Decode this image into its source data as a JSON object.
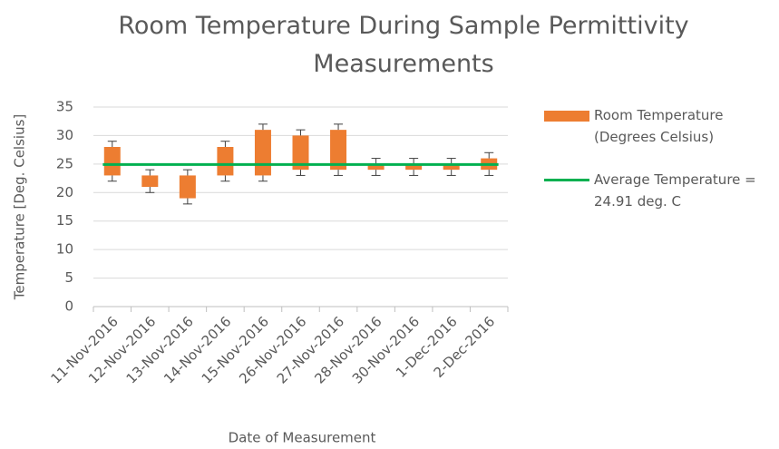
{
  "chart_data": {
    "type": "floating_bar",
    "title": "Room Temperature During Sample Permittivity Measurements",
    "x_label": "Date of Measurement",
    "y_label": "Temperature  [Deg. Celsius]",
    "categories": [
      "11-Nov-2016",
      "12-Nov-2016",
      "13-Nov-2016",
      "14-Nov-2016",
      "15-Nov-2016",
      "26-Nov-2016",
      "27-Nov-2016",
      "28-Nov-2016",
      "30-Nov-2016",
      "1-Dec-2016",
      "2-Dec-2016"
    ],
    "series": [
      {
        "name": "Room Temperature (Degrees Celsius)",
        "color": "#ed7d31",
        "low": [
          23,
          21,
          19,
          23,
          23,
          24,
          24,
          24,
          24,
          24,
          24
        ],
        "high": [
          28,
          23,
          23,
          28,
          31,
          30,
          31,
          25,
          25,
          25,
          26
        ],
        "error": 1
      }
    ],
    "average": {
      "name": "Average Temperature = 24.91 deg. C",
      "value": 24.91,
      "color": "#00b050"
    },
    "ylim": [
      0,
      35
    ],
    "yticks": [
      0,
      5,
      10,
      15,
      20,
      25,
      30,
      35
    ],
    "grid": true,
    "legend": "right"
  }
}
